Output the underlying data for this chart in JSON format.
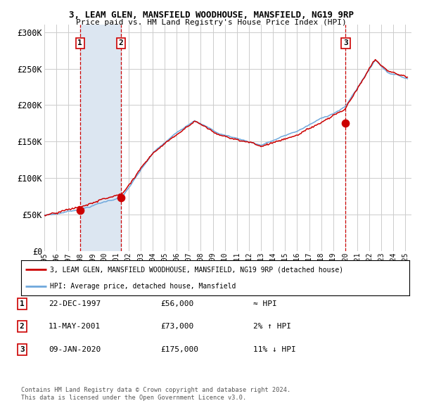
{
  "title1": "3, LEAM GLEN, MANSFIELD WOODHOUSE, MANSFIELD, NG19 9RP",
  "title2": "Price paid vs. HM Land Registry's House Price Index (HPI)",
  "ylabel_ticks": [
    "£0",
    "£50K",
    "£100K",
    "£150K",
    "£200K",
    "£250K",
    "£300K"
  ],
  "ytick_vals": [
    0,
    50000,
    100000,
    150000,
    200000,
    250000,
    300000
  ],
  "ylim": [
    0,
    310000
  ],
  "sales": [
    {
      "date": 1997.97,
      "price": 56000,
      "label": "1"
    },
    {
      "date": 2001.36,
      "price": 73000,
      "label": "2"
    },
    {
      "date": 2020.03,
      "price": 175000,
      "label": "3"
    }
  ],
  "vline_dates": [
    1997.97,
    2001.36,
    2020.03
  ],
  "shade_regions": [
    [
      1997.97,
      2001.36
    ]
  ],
  "legend_line1": "3, LEAM GLEN, MANSFIELD WOODHOUSE, MANSFIELD, NG19 9RP (detached house)",
  "legend_line2": "HPI: Average price, detached house, Mansfield",
  "table_rows": [
    {
      "num": "1",
      "date": "22-DEC-1997",
      "price": "£56,000",
      "rel": "≈ HPI"
    },
    {
      "num": "2",
      "date": "11-MAY-2001",
      "price": "£73,000",
      "rel": "2% ↑ HPI"
    },
    {
      "num": "3",
      "date": "09-JAN-2020",
      "price": "£175,000",
      "rel": "11% ↓ HPI"
    }
  ],
  "footnote1": "Contains HM Land Registry data © Crown copyright and database right 2024.",
  "footnote2": "This data is licensed under the Open Government Licence v3.0.",
  "hpi_color": "#6fa8dc",
  "price_color": "#cc0000",
  "dot_color": "#cc0000",
  "vline_color": "#cc0000",
  "shade_color": "#dce6f1",
  "grid_color": "#cccccc",
  "bg_color": "#ffffff",
  "xstart": 1995.0,
  "xend": 2025.5
}
